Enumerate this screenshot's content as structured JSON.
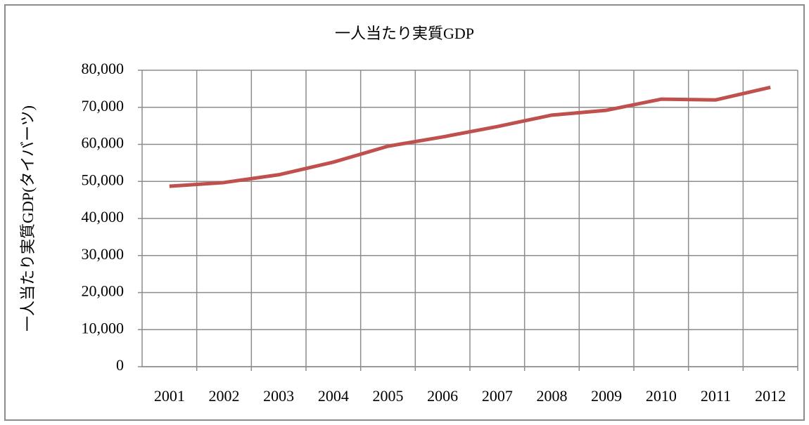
{
  "chart_data": {
    "type": "line",
    "title": "一人当たり実質GDP",
    "y_label": "一人当たり実質GDP(タイバーツ)",
    "categories": [
      "2001",
      "2002",
      "2003",
      "2004",
      "2005",
      "2006",
      "2007",
      "2008",
      "2009",
      "2010",
      "2011",
      "2012"
    ],
    "series": [
      {
        "color": "#c0504d",
        "values": [
          48700,
          49700,
          51800,
          55200,
          59500,
          62000,
          64800,
          67900,
          69200,
          72200,
          72000,
          75400
        ]
      }
    ],
    "ylim": [
      0,
      80000
    ],
    "yticks": [
      0,
      {
        "value": 10000,
        "label": "10,000"
      },
      {
        "value": 20000,
        "label": "20,000"
      },
      {
        "value": 30000,
        "label": "30,000"
      },
      {
        "value": 40000,
        "label": "40,000"
      },
      {
        "value": 50000,
        "label": "50,000"
      },
      {
        "value": 60000,
        "label": "60,000"
      },
      {
        "value": 70000,
        "label": "70,000"
      },
      {
        "value": 80000,
        "label": "80,000"
      }
    ],
    "grid": true
  }
}
